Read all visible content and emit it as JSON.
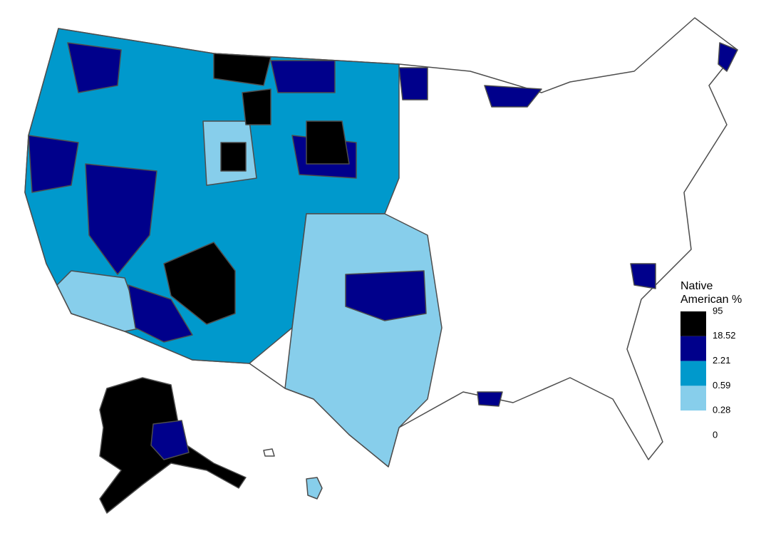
{
  "legend": {
    "title": [
      "Native",
      "American %"
    ],
    "breaks": [
      95,
      18.52,
      2.21,
      0.59,
      0.28,
      0
    ],
    "colors": [
      "#000000",
      "#00008b",
      "#0099cc",
      "#87ceeb",
      "#ffffff"
    ]
  }
}
